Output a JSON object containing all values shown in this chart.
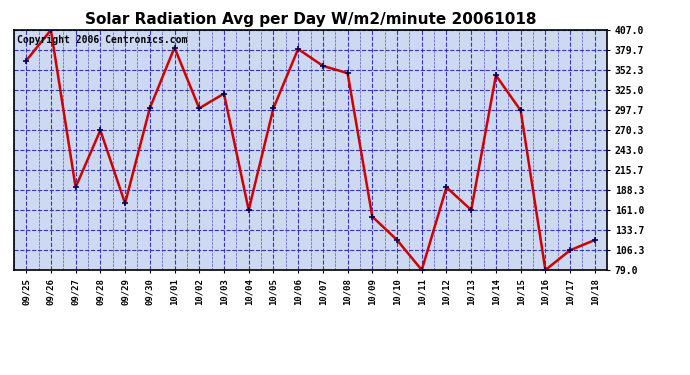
{
  "title": "Solar Radiation Avg per Day W/m2/minute 20061018",
  "copyright_text": "Copyright 2006 Centronics.com",
  "labels": [
    "09/25",
    "09/26",
    "09/27",
    "09/28",
    "09/29",
    "09/30",
    "10/01",
    "10/02",
    "10/03",
    "10/04",
    "10/05",
    "10/06",
    "10/07",
    "10/08",
    "10/09",
    "10/10",
    "10/11",
    "10/12",
    "10/13",
    "10/14",
    "10/15",
    "10/16",
    "10/17",
    "10/18"
  ],
  "values": [
    365,
    407,
    192,
    270,
    170,
    300,
    383,
    300,
    320,
    161,
    300,
    381,
    358,
    348,
    152,
    120,
    79,
    192,
    161,
    345,
    297,
    79,
    106,
    120
  ],
  "ymin": 79.0,
  "ymax": 407.0,
  "yticks": [
    79.0,
    106.3,
    133.7,
    161.0,
    188.3,
    215.7,
    243.0,
    270.3,
    297.7,
    325.0,
    352.3,
    379.7,
    407.0
  ],
  "line_color": "#cc0000",
  "marker_color": "#000055",
  "grid_color": "#3333bb",
  "bg_color": "#ffffff",
  "plot_bg_color": "#ccd9f0",
  "title_fontsize": 11,
  "copyright_fontsize": 7
}
